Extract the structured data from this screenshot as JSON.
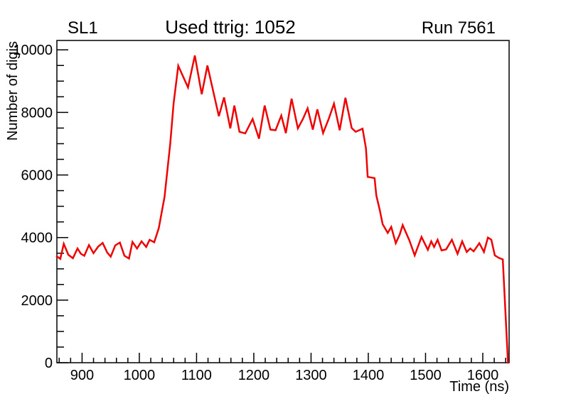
{
  "window": {
    "background": "#ffffff",
    "foreground": "#000000"
  },
  "titles": {
    "left": "SL1",
    "center": "Used ttrig: 1052",
    "right": "Run 7561"
  },
  "chart_data": {
    "type": "line",
    "title": "Used ttrig: 1052",
    "subtitle_left": "SL1",
    "subtitle_right": "Run 7561",
    "xlabel": "Time (ns)",
    "ylabel": "Number of digis",
    "xlim": [
      856,
      1646
    ],
    "ylim": [
      0,
      10300
    ],
    "x_major_ticks": [
      900,
      1000,
      1100,
      1200,
      1300,
      1400,
      1500,
      1600
    ],
    "x_tick_labels": [
      "900",
      "1000",
      "1100",
      "1200",
      "1300",
      "1400",
      "1500",
      "1600"
    ],
    "x_minor_step": 20,
    "y_major_ticks": [
      0,
      2000,
      4000,
      6000,
      8000,
      10000
    ],
    "y_tick_labels": [
      "0",
      "2000",
      "4000",
      "6000",
      "8000",
      "10000"
    ],
    "y_minor_step": 500,
    "grid": false,
    "legend": null,
    "line_color": "#ee0202",
    "line_width": 2.5,
    "axis_color": "#000000",
    "series_name": "digis-vs-time",
    "points": [
      [
        856,
        3400
      ],
      [
        862,
        3320
      ],
      [
        868,
        3800
      ],
      [
        876,
        3450
      ],
      [
        884,
        3340
      ],
      [
        892,
        3650
      ],
      [
        898,
        3480
      ],
      [
        904,
        3420
      ],
      [
        912,
        3760
      ],
      [
        920,
        3500
      ],
      [
        928,
        3710
      ],
      [
        936,
        3830
      ],
      [
        944,
        3520
      ],
      [
        950,
        3390
      ],
      [
        958,
        3750
      ],
      [
        966,
        3840
      ],
      [
        974,
        3420
      ],
      [
        982,
        3330
      ],
      [
        988,
        3860
      ],
      [
        996,
        3650
      ],
      [
        1004,
        3880
      ],
      [
        1012,
        3700
      ],
      [
        1018,
        3930
      ],
      [
        1026,
        3850
      ],
      [
        1034,
        4300
      ],
      [
        1044,
        5300
      ],
      [
        1054,
        7000
      ],
      [
        1060,
        8300
      ],
      [
        1068,
        9490
      ],
      [
        1085,
        8800
      ],
      [
        1097,
        9820
      ],
      [
        1109,
        8580
      ],
      [
        1119,
        9500
      ],
      [
        1130,
        8600
      ],
      [
        1139,
        7880
      ],
      [
        1148,
        8480
      ],
      [
        1159,
        7490
      ],
      [
        1166,
        8220
      ],
      [
        1175,
        7380
      ],
      [
        1185,
        7330
      ],
      [
        1198,
        7790
      ],
      [
        1209,
        7160
      ],
      [
        1219,
        8220
      ],
      [
        1229,
        7450
      ],
      [
        1238,
        7430
      ],
      [
        1248,
        7900
      ],
      [
        1256,
        7340
      ],
      [
        1266,
        8440
      ],
      [
        1277,
        7490
      ],
      [
        1286,
        7800
      ],
      [
        1294,
        8130
      ],
      [
        1303,
        7450
      ],
      [
        1311,
        8100
      ],
      [
        1321,
        7340
      ],
      [
        1331,
        7800
      ],
      [
        1340,
        8280
      ],
      [
        1350,
        7430
      ],
      [
        1360,
        8470
      ],
      [
        1371,
        7500
      ],
      [
        1378,
        7380
      ],
      [
        1390,
        7480
      ],
      [
        1396,
        6850
      ],
      [
        1399,
        5940
      ],
      [
        1411,
        5900
      ],
      [
        1414,
        5350
      ],
      [
        1420,
        4880
      ],
      [
        1425,
        4430
      ],
      [
        1434,
        4150
      ],
      [
        1440,
        4340
      ],
      [
        1448,
        3820
      ],
      [
        1455,
        4100
      ],
      [
        1460,
        4400
      ],
      [
        1472,
        3900
      ],
      [
        1481,
        3430
      ],
      [
        1493,
        4020
      ],
      [
        1504,
        3610
      ],
      [
        1510,
        3880
      ],
      [
        1515,
        3700
      ],
      [
        1521,
        3930
      ],
      [
        1528,
        3590
      ],
      [
        1536,
        3620
      ],
      [
        1546,
        3930
      ],
      [
        1556,
        3480
      ],
      [
        1564,
        3880
      ],
      [
        1572,
        3540
      ],
      [
        1578,
        3650
      ],
      [
        1584,
        3560
      ],
      [
        1594,
        3820
      ],
      [
        1602,
        3540
      ],
      [
        1609,
        4000
      ],
      [
        1615,
        3930
      ],
      [
        1621,
        3430
      ],
      [
        1628,
        3350
      ],
      [
        1635,
        3300
      ],
      [
        1644,
        0
      ]
    ]
  }
}
